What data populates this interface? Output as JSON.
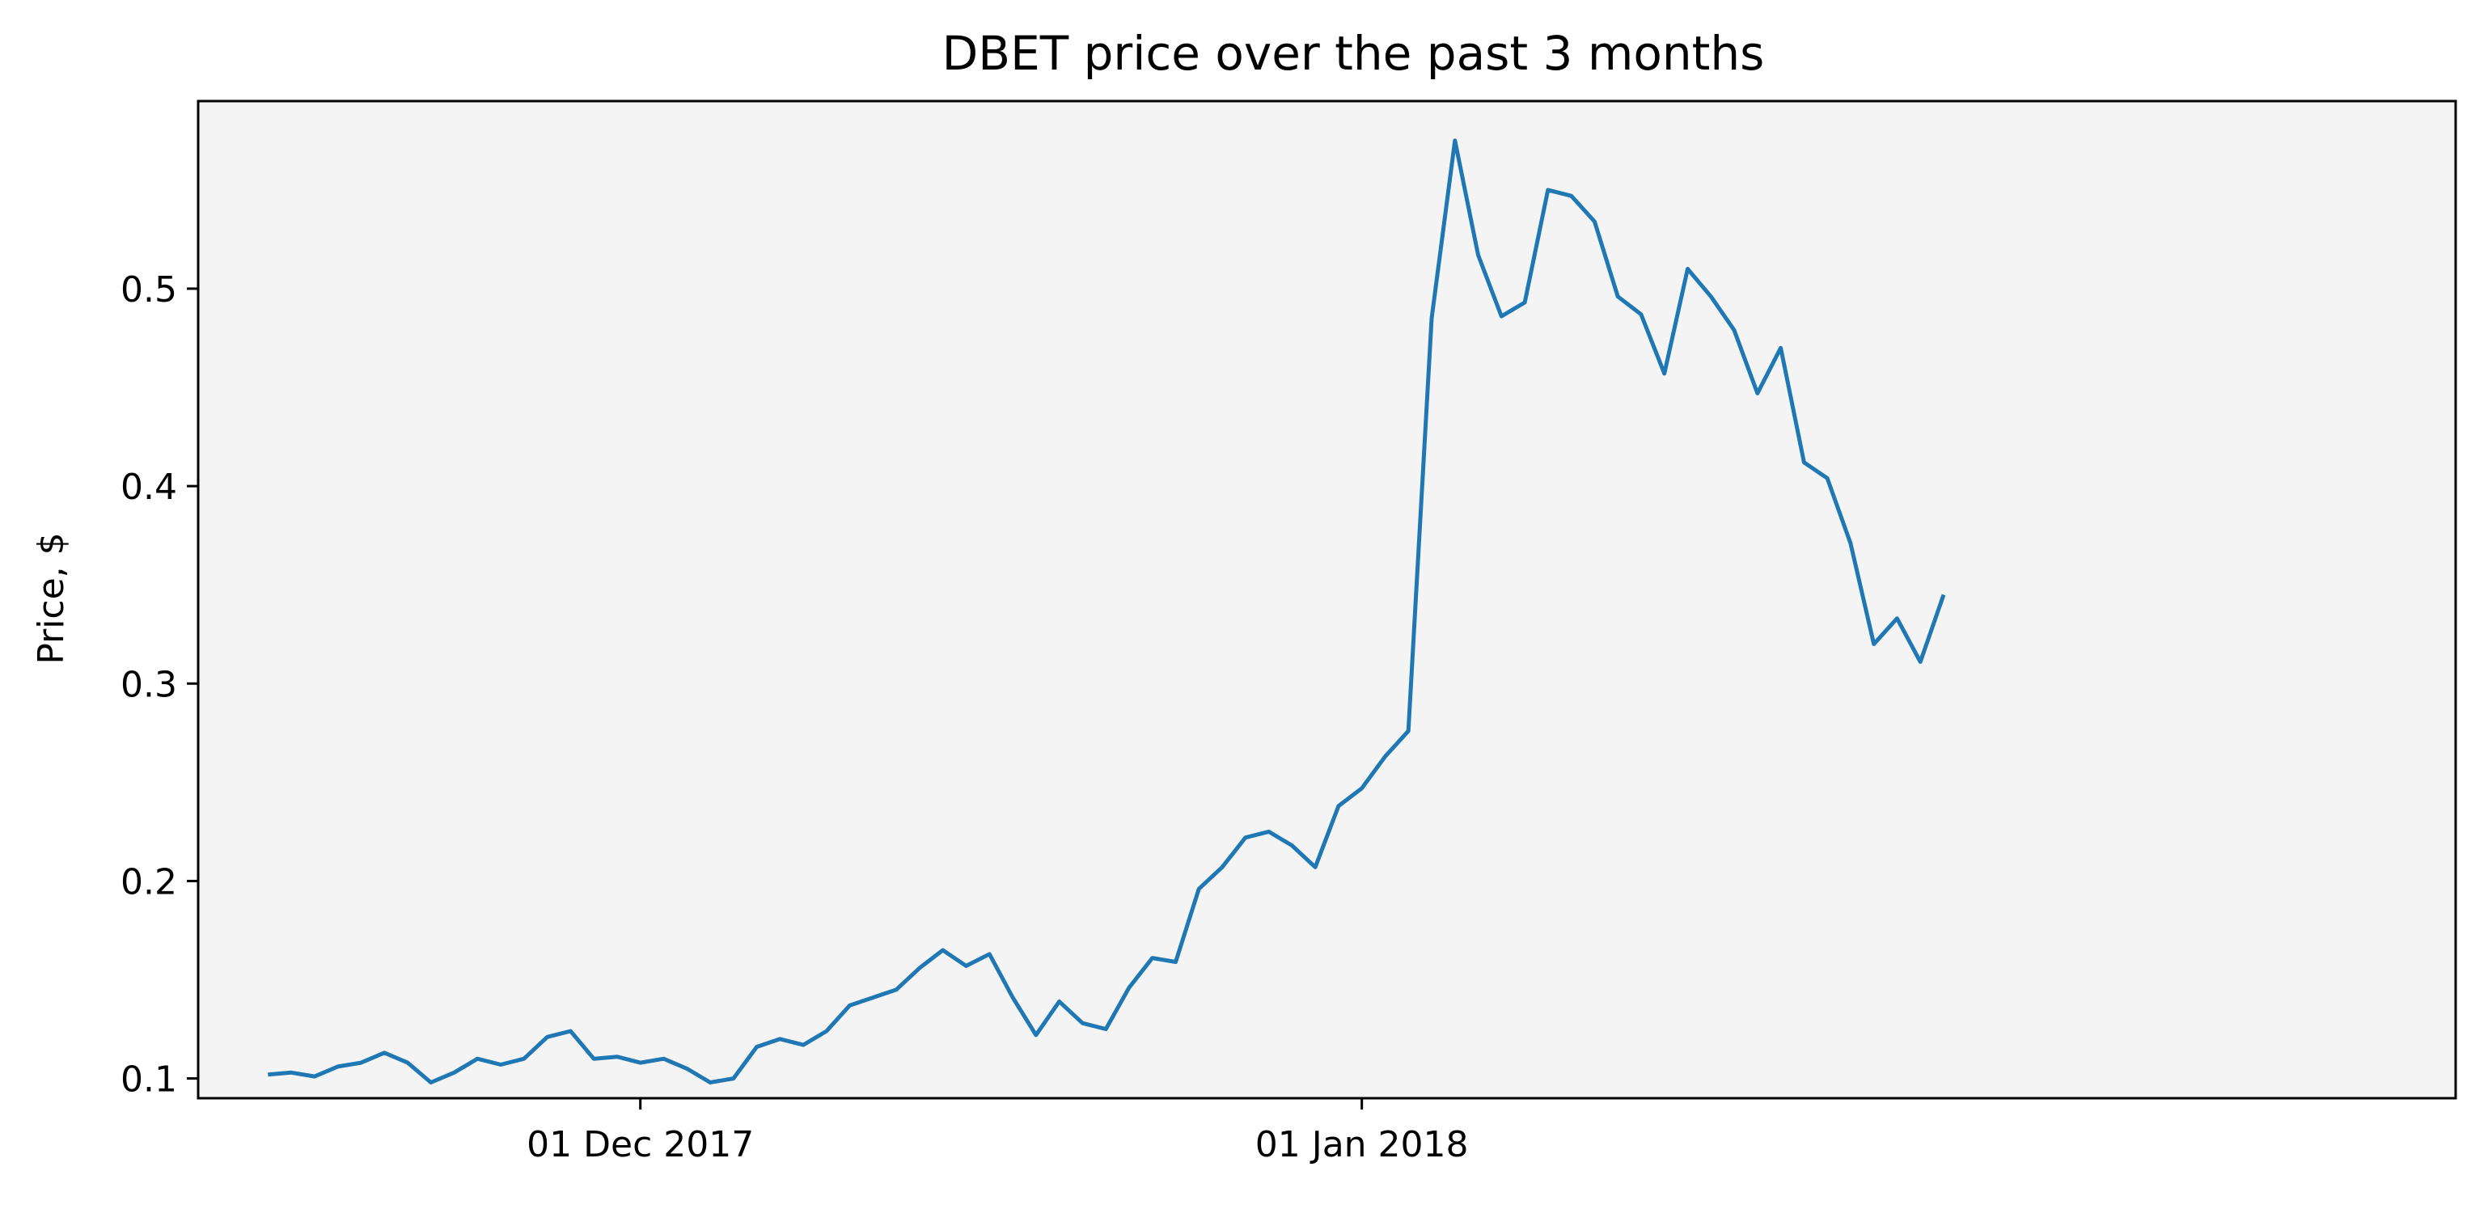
{
  "chart_data": {
    "type": "line",
    "title": "DBET price over the past 3 months",
    "xlabel": "",
    "ylabel": "Price, $",
    "grid": false,
    "legend": "none",
    "colors": {
      "line": "#1f77b4",
      "plot_background": "#f4f4f4",
      "axes": "#000000"
    },
    "xlim": [
      "2017-11-12",
      "2018-02-17"
    ],
    "ylim": [
      0.09,
      0.595
    ],
    "x_ticks": [
      {
        "value": "2017-12-01",
        "label": "01 Dec 2017"
      },
      {
        "value": "2018-01-01",
        "label": "01 Jan 2018"
      }
    ],
    "y_ticks": [
      {
        "value": 0.1,
        "label": "0.1"
      },
      {
        "value": 0.2,
        "label": "0.2"
      },
      {
        "value": 0.3,
        "label": "0.3"
      },
      {
        "value": 0.4,
        "label": "0.4"
      },
      {
        "value": 0.5,
        "label": "0.5"
      }
    ],
    "series": [
      {
        "x": [
          "2017-11-15",
          "2017-11-16",
          "2017-11-17",
          "2017-11-18",
          "2017-11-19",
          "2017-11-20",
          "2017-11-21",
          "2017-11-22",
          "2017-11-23",
          "2017-11-24",
          "2017-11-25",
          "2017-11-26",
          "2017-11-27",
          "2017-11-28",
          "2017-11-29",
          "2017-11-30",
          "2017-12-01",
          "2017-12-02",
          "2017-12-03",
          "2017-12-04",
          "2017-12-05",
          "2017-12-06",
          "2017-12-07",
          "2017-12-08",
          "2017-12-09",
          "2017-12-10",
          "2017-12-11",
          "2017-12-12",
          "2017-12-13",
          "2017-12-14",
          "2017-12-15",
          "2017-12-16",
          "2017-12-17",
          "2017-12-18",
          "2017-12-19",
          "2017-12-20",
          "2017-12-21",
          "2017-12-22",
          "2017-12-23",
          "2017-12-24",
          "2017-12-25",
          "2017-12-26",
          "2017-12-27",
          "2017-12-28",
          "2017-12-29",
          "2017-12-30",
          "2017-12-31",
          "2018-01-01",
          "2018-01-02",
          "2018-01-03",
          "2018-01-04",
          "2018-01-05",
          "2018-01-06",
          "2018-01-07",
          "2018-01-08",
          "2018-01-09",
          "2018-01-10",
          "2018-01-11",
          "2018-01-12",
          "2018-01-13",
          "2018-01-14",
          "2018-01-15",
          "2018-01-16",
          "2018-01-17",
          "2018-01-18",
          "2018-01-19",
          "2018-01-20",
          "2018-01-21",
          "2018-01-22",
          "2018-01-23",
          "2018-01-24",
          "2018-01-25",
          "2018-01-26"
        ],
        "y": [
          0.102,
          0.103,
          0.101,
          0.106,
          0.108,
          0.113,
          0.108,
          0.098,
          0.103,
          0.11,
          0.107,
          0.11,
          0.121,
          0.124,
          0.11,
          0.111,
          0.108,
          0.11,
          0.105,
          0.098,
          0.1,
          0.116,
          0.12,
          0.117,
          0.124,
          0.137,
          0.141,
          0.145,
          0.156,
          0.165,
          0.157,
          0.163,
          0.141,
          0.122,
          0.139,
          0.128,
          0.125,
          0.146,
          0.161,
          0.159,
          0.196,
          0.207,
          0.222,
          0.225,
          0.218,
          0.207,
          0.238,
          0.247,
          0.263,
          0.276,
          0.485,
          0.575,
          0.517,
          0.486,
          0.493,
          0.55,
          0.547,
          0.534,
          0.496,
          0.487,
          0.457,
          0.51,
          0.496,
          0.479,
          0.447,
          0.47,
          0.412,
          0.404,
          0.371,
          0.32,
          0.333,
          0.311,
          0.345
        ]
      }
    ]
  }
}
